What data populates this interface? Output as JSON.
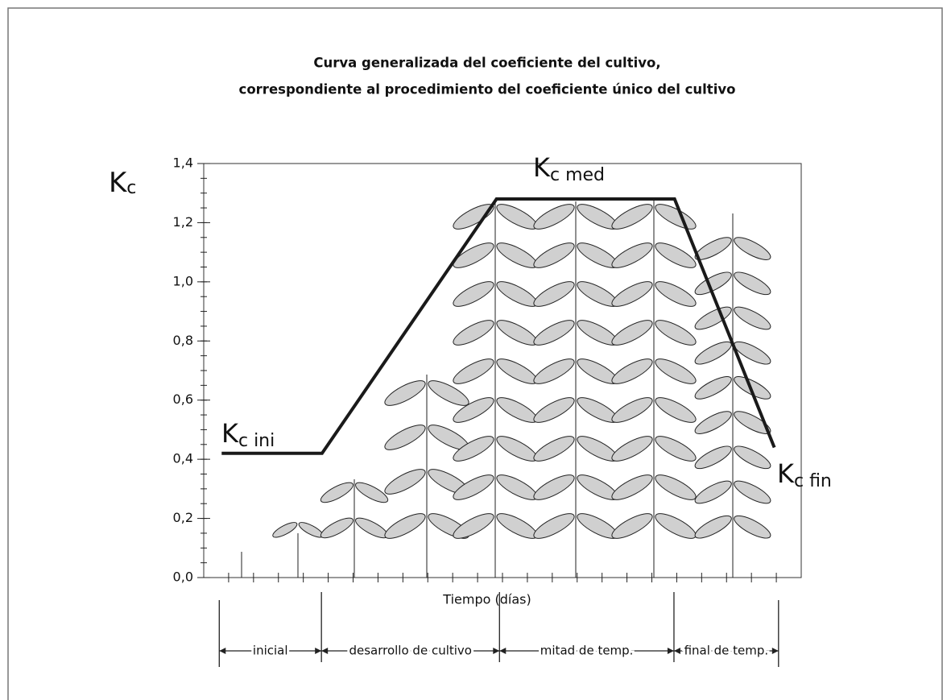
{
  "chart_data": {
    "type": "line",
    "title": [
      "Curva generalizada del coeficiente del cultivo,",
      "correspondiente al procedimiento del coeficiente único del cultivo"
    ],
    "ylabel": {
      "text": "K",
      "sub": "c"
    },
    "xlabel": "Tiempo (días)",
    "x": [
      3,
      19.8,
      49,
      78.8,
      95.5
    ],
    "values": [
      0.42,
      0.42,
      1.28,
      1.28,
      0.44
    ],
    "color": "#1a1a1a",
    "xlim": [
      0,
      100
    ],
    "ylim": [
      0,
      1.4
    ],
    "yticks": [
      {
        "value": 0,
        "label": "0,0"
      },
      {
        "value": 0.2,
        "label": "0,2"
      },
      {
        "value": 0.4,
        "label": "0,4"
      },
      {
        "value": 0.6,
        "label": "0,6"
      },
      {
        "value": 0.8,
        "label": "0,8"
      },
      {
        "value": 1,
        "label": "1,0"
      },
      {
        "value": 1.2,
        "label": "1,2"
      },
      {
        "value": 1.4,
        "label": "1,4"
      }
    ],
    "annotations": [
      {
        "text": "K",
        "sub": "c ini"
      },
      {
        "text": "K",
        "sub": "c med"
      },
      {
        "text": "K",
        "sub": "c fin"
      }
    ],
    "stage_bounds": [
      2.6,
      19.7,
      49.5,
      78.7,
      96.2
    ],
    "stages": [
      "inicial",
      "desarrollo de cultivo",
      "mitad de temp.",
      "final de temp."
    ]
  }
}
